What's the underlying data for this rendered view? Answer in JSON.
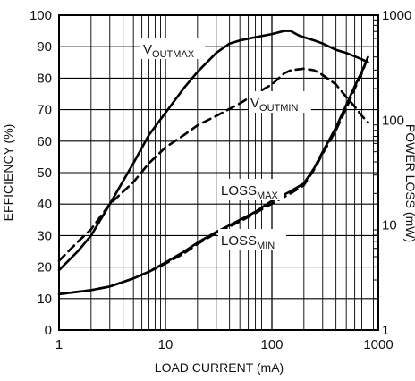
{
  "chart_data": {
    "type": "line",
    "title": "",
    "xlabel": "LOAD CURRENT (mA)",
    "ylabel": "EFFICIENCY (%)",
    "y2label": "POWER LOSS (mW)",
    "x_scale": "log",
    "xlim": [
      1,
      1000
    ],
    "ylim": [
      0,
      100
    ],
    "y2_scale": "log",
    "y2lim": [
      1,
      1000
    ],
    "grid": true,
    "x_ticks": [
      "1",
      "10",
      "100",
      "1000"
    ],
    "y_ticks": [
      "0",
      "10",
      "20",
      "30",
      "40",
      "50",
      "60",
      "70",
      "80",
      "90",
      "100"
    ],
    "y2_ticks": [
      "1",
      "10",
      "100",
      "1000"
    ],
    "series": [
      {
        "name": "VOUTMAX",
        "axis": "left",
        "style": "solid",
        "x": [
          1,
          1.5,
          2,
          3,
          5,
          7,
          10,
          15,
          20,
          30,
          40,
          50,
          70,
          100,
          130,
          150,
          180,
          200,
          250,
          300,
          400,
          500,
          700,
          800
        ],
        "y": [
          19,
          25,
          30,
          40,
          53,
          62,
          69,
          77,
          82,
          88,
          91,
          92,
          93,
          94,
          95,
          95,
          93.5,
          93,
          92,
          91,
          89,
          88,
          86,
          85
        ]
      },
      {
        "name": "VOUTMIN",
        "axis": "left",
        "style": "dashed",
        "x": [
          1,
          1.5,
          2,
          3,
          5,
          7,
          10,
          15,
          20,
          30,
          50,
          70,
          100,
          130,
          150,
          200,
          250,
          300,
          400,
          500,
          600,
          700,
          800
        ],
        "y": [
          22,
          28,
          32,
          40,
          47,
          53,
          58,
          62,
          65,
          68,
          72,
          75,
          78,
          81.5,
          82.5,
          83,
          82.5,
          81,
          78,
          74,
          71,
          68,
          66
        ]
      },
      {
        "name": "LOSSMAX",
        "axis": "right",
        "style": "solid",
        "x": [
          1,
          2,
          3,
          5,
          7,
          10,
          15,
          20,
          30,
          50,
          70,
          100,
          150,
          200,
          250,
          300,
          400,
          500,
          600,
          700,
          800
        ],
        "y": [
          2.2,
          2.4,
          2.6,
          3.1,
          3.6,
          4.4,
          5.6,
          6.8,
          8.6,
          11.2,
          13.4,
          17,
          21,
          25,
          35,
          50,
          85,
          140,
          210,
          290,
          400
        ]
      },
      {
        "name": "LOSSMIN",
        "axis": "right",
        "style": "dashed",
        "x": [
          1,
          2,
          3,
          5,
          7,
          10,
          15,
          20,
          30,
          50,
          70,
          100,
          150,
          200,
          250,
          300,
          400,
          500,
          600,
          700,
          800
        ],
        "y": [
          2.2,
          2.4,
          2.6,
          3.1,
          3.6,
          4.3,
          5.4,
          6.6,
          8.4,
          10.8,
          13,
          16,
          20,
          24,
          34,
          48,
          80,
          130,
          200,
          280,
          400
        ]
      }
    ],
    "annotations": [
      {
        "main": "V",
        "sub": "OUTMAX"
      },
      {
        "main": "V",
        "sub": "OUTMIN"
      },
      {
        "main": "LOSS",
        "sub": "MAX"
      },
      {
        "main": "LOSS",
        "sub": "MIN"
      }
    ]
  }
}
